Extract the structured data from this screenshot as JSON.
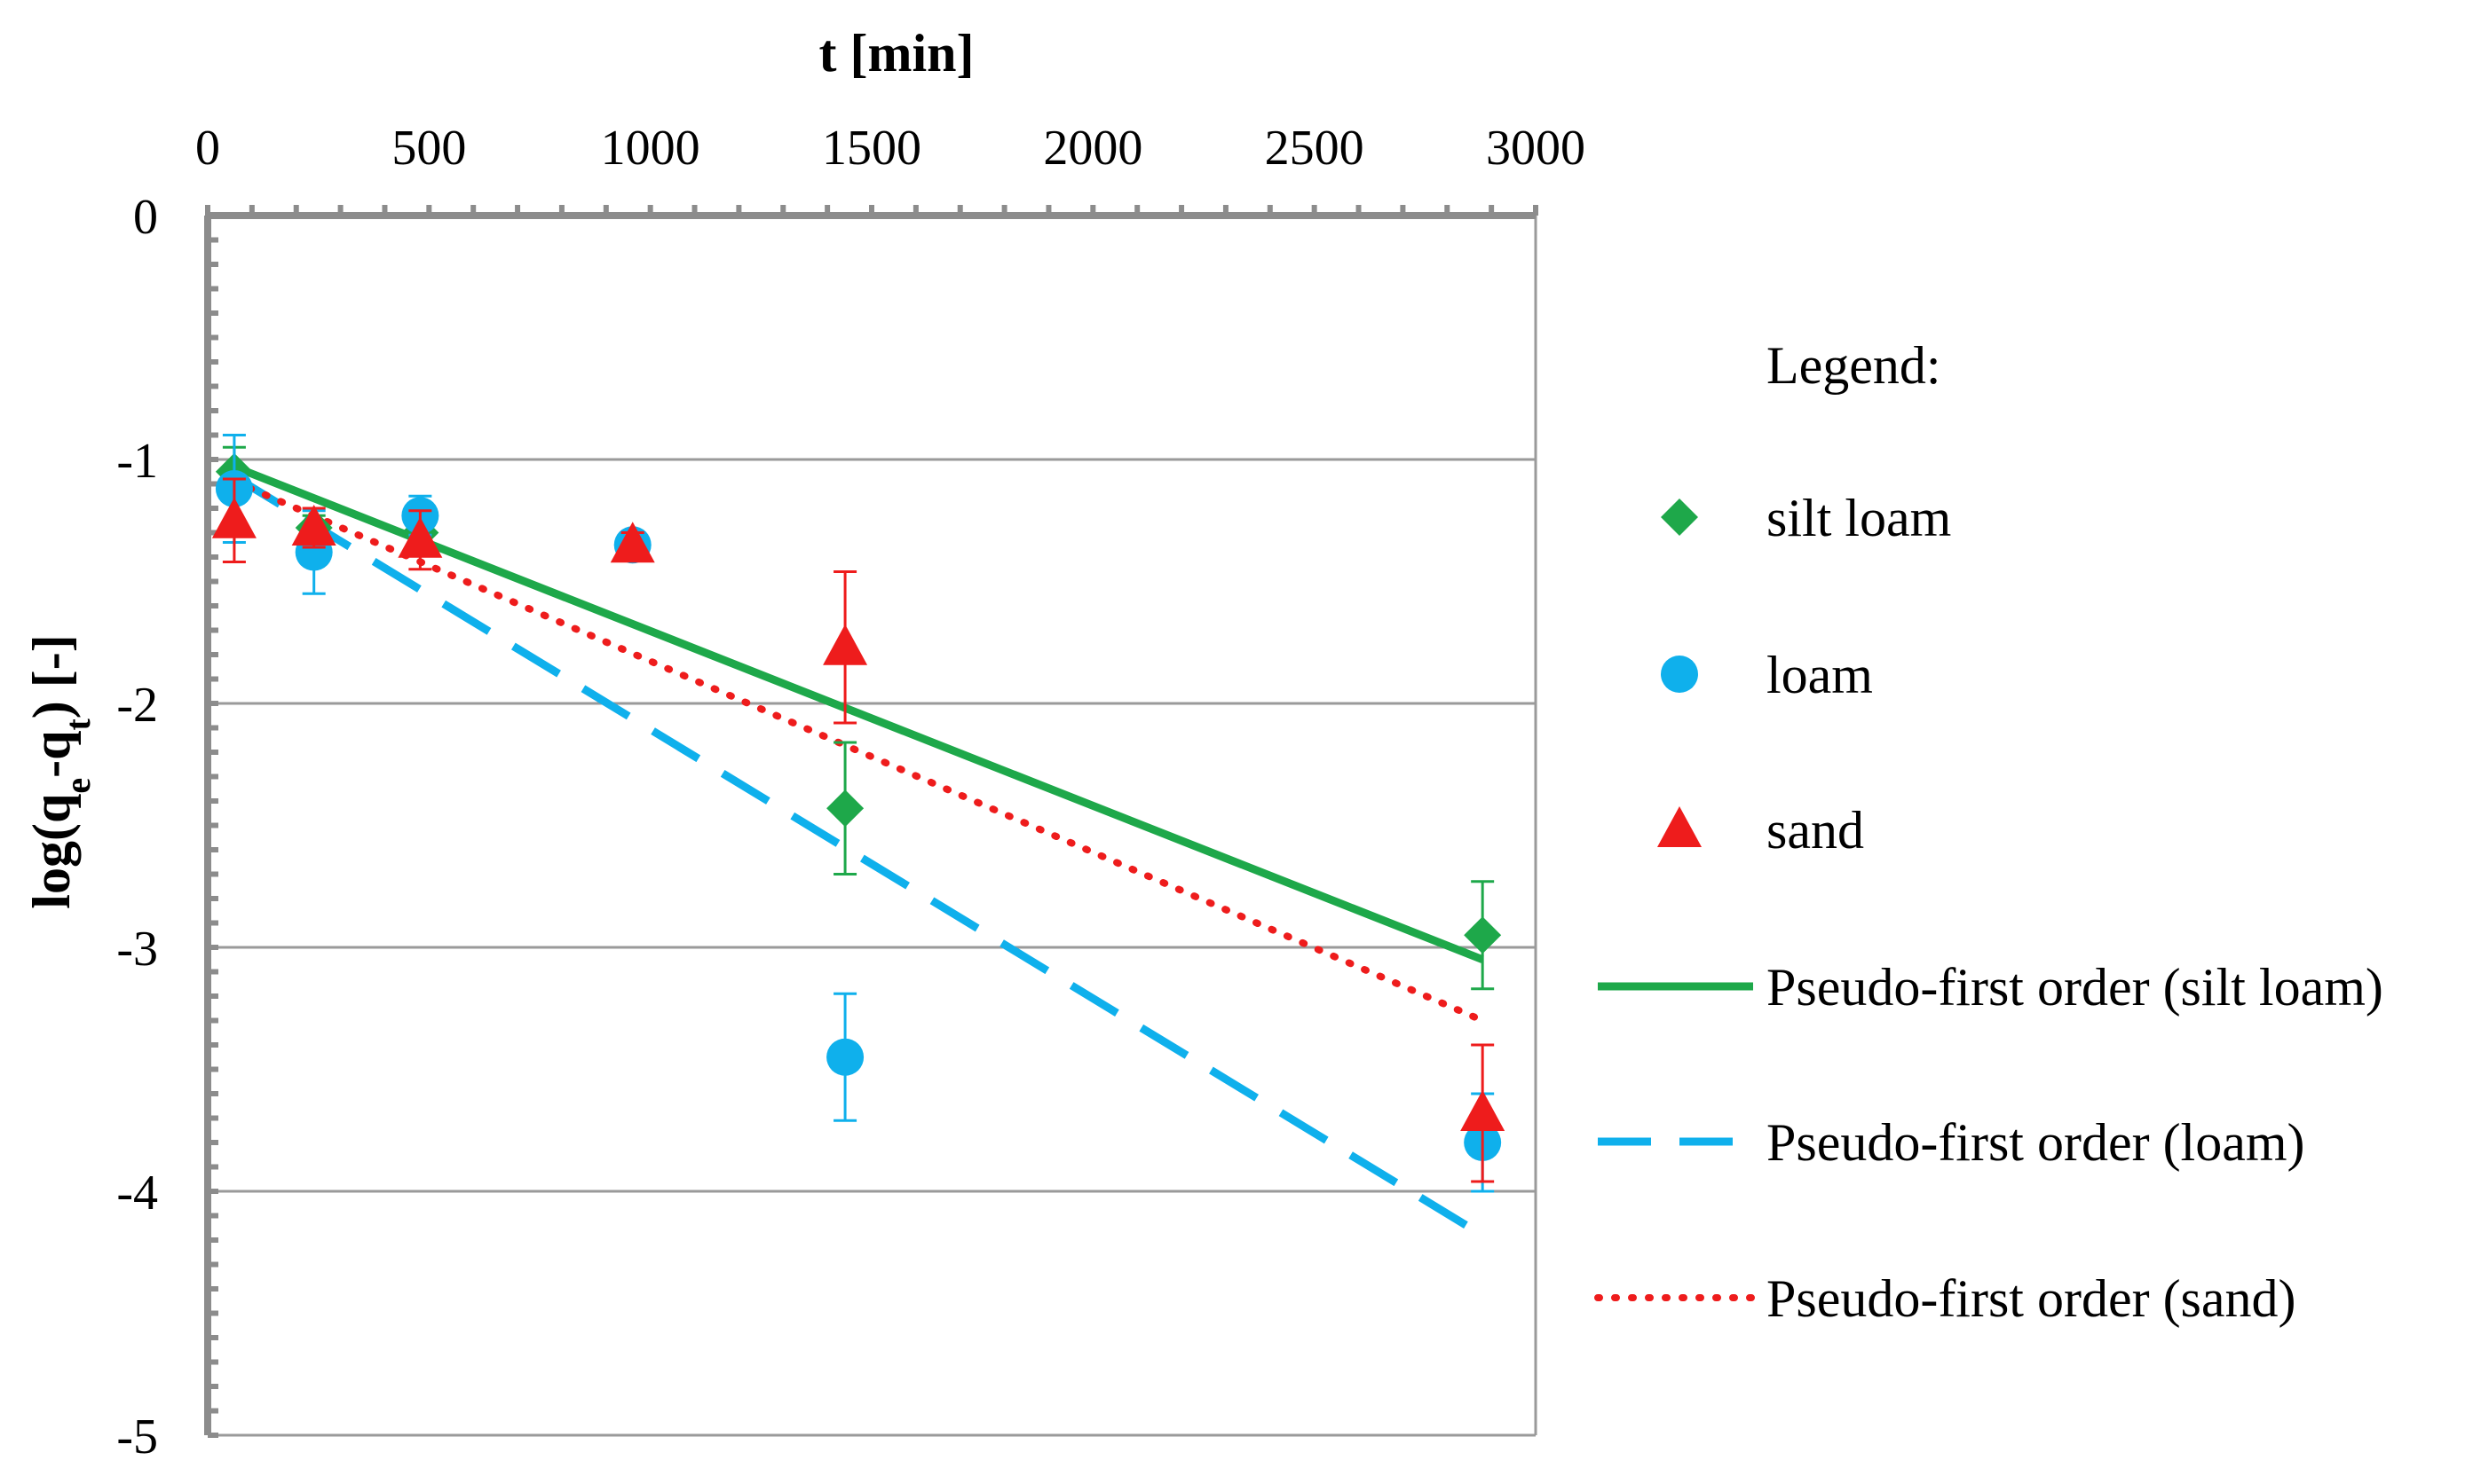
{
  "chart_data": {
    "type": "scatter",
    "title": "",
    "xlabel": "t [min]",
    "ylabel_parts": [
      "log(q",
      "e",
      "-q",
      "t",
      ") [-]"
    ],
    "xlim": [
      0,
      3000
    ],
    "ylim": [
      -5,
      0
    ],
    "x_ticks": [
      0,
      500,
      1000,
      1500,
      2000,
      2500,
      3000
    ],
    "y_ticks": [
      0,
      -1,
      -2,
      -3,
      -4,
      -5
    ],
    "x_axis_position": "top",
    "grid": "horizontal",
    "legend_title": "Legend:",
    "legend_position": "right",
    "series": [
      {
        "name": "silt loam",
        "kind": "points",
        "marker": "diamond",
        "color": "#1ea84a",
        "x": [
          60,
          240,
          480,
          960,
          1440,
          2880
        ],
        "y": [
          -1.05,
          -1.28,
          -1.3,
          -1.35,
          -2.43,
          -2.95
        ],
        "err": [
          0.1,
          0.05,
          0.05,
          0.05,
          0.27,
          0.22
        ]
      },
      {
        "name": "loam",
        "kind": "points",
        "marker": "circle",
        "color": "#0fb0ec",
        "x": [
          60,
          240,
          480,
          960,
          1440,
          2880
        ],
        "y": [
          -1.12,
          -1.38,
          -1.23,
          -1.35,
          -3.45,
          -3.8
        ],
        "err": [
          0.22,
          0.17,
          0.08,
          0.05,
          0.26,
          0.2
        ]
      },
      {
        "name": "sand",
        "kind": "points",
        "marker": "triangle",
        "color": "#ee1c1c",
        "x": [
          60,
          240,
          480,
          960,
          1440,
          2880
        ],
        "y": [
          -1.25,
          -1.28,
          -1.33,
          -1.35,
          -1.77,
          -3.68
        ],
        "err": [
          0.17,
          0.08,
          0.12,
          0.05,
          0.31,
          0.28
        ]
      },
      {
        "name": "Pseudo-first order (silt loam)",
        "kind": "line",
        "dash": "solid",
        "color": "#1ea84a",
        "x": [
          60,
          2880
        ],
        "y": [
          -1.03,
          -3.05
        ]
      },
      {
        "name": "Pseudo-first order (loam)",
        "kind": "line",
        "dash": "dashed",
        "color": "#0fb0ec",
        "x": [
          60,
          2880
        ],
        "y": [
          -1.07,
          -4.18
        ]
      },
      {
        "name": "Pseudo-first order (sand)",
        "kind": "line",
        "dash": "dotted",
        "color": "#ee1c1c",
        "x": [
          60,
          2880
        ],
        "y": [
          -1.09,
          -3.3
        ]
      }
    ]
  }
}
